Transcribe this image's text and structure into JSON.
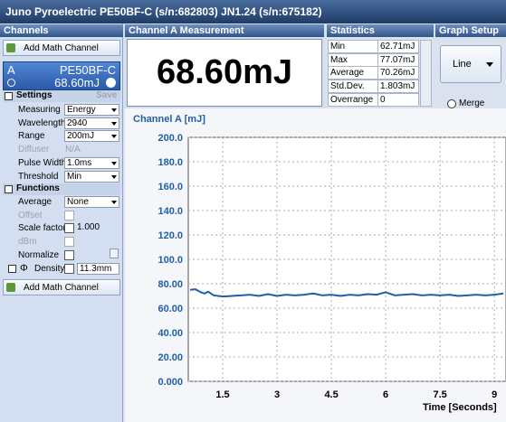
{
  "title_bar": "Juno Pyroelectric PE50BF-C (s/n:682803)  JN1.24 (s/n:675182)",
  "channels": {
    "header": "Channels",
    "add_math_top": "Add Math Channel",
    "channel": {
      "letter": "A",
      "sensor": "PE50BF-C",
      "reading": "68.60mJ"
    },
    "settings": {
      "header": "Settings",
      "save": "Save",
      "rows": [
        {
          "label": "Measuring",
          "value": "Energy"
        },
        {
          "label": "Wavelength",
          "value": "2940"
        },
        {
          "label": "Range",
          "value": "200mJ"
        },
        {
          "label": "Diffuser",
          "value": "N/A"
        },
        {
          "label": "Pulse Width",
          "value": "1.0ms"
        },
        {
          "label": "Threshold",
          "value": "Min"
        }
      ]
    },
    "functions": {
      "header": "Functions",
      "rows": [
        {
          "label": "Average",
          "value": "None"
        },
        {
          "label": "Offset"
        },
        {
          "label": "Scale factor",
          "value": "1.000"
        },
        {
          "label": "dBm"
        },
        {
          "label": "Normalize"
        },
        {
          "symbol": "Φ",
          "label": "Density",
          "value": "11.3mm"
        }
      ]
    },
    "add_math_bottom": "Add Math Channel"
  },
  "measurement": {
    "header": "Channel A Measurement",
    "value": "68.60mJ"
  },
  "statistics": {
    "header": "Statistics",
    "rows": [
      {
        "label": "Min",
        "value": "62.71mJ"
      },
      {
        "label": "Max",
        "value": "77.07mJ"
      },
      {
        "label": "Average",
        "value": "70.26mJ"
      },
      {
        "label": "Std.Dev.",
        "value": "1.803mJ"
      },
      {
        "label": "Overrange",
        "value": "0"
      }
    ]
  },
  "graph_setup": {
    "header": "Graph Setup",
    "mode": "Line",
    "merge": "Merge"
  },
  "chart_data": {
    "type": "line",
    "title": "Channel A [mJ]",
    "x_label": "Time [Seconds]",
    "x": [
      0.6,
      0.75,
      0.9,
      1.0,
      1.1,
      1.25,
      1.5,
      1.75,
      2.0,
      2.25,
      2.5,
      2.75,
      3.0,
      3.25,
      3.5,
      3.75,
      4.0,
      4.25,
      4.5,
      4.75,
      5.0,
      5.25,
      5.5,
      5.75,
      6.0,
      6.25,
      6.5,
      6.75,
      7.0,
      7.25,
      7.5,
      7.75,
      8.0,
      8.25,
      8.5,
      8.75,
      9.0,
      9.25
    ],
    "values": [
      75,
      75.5,
      73,
      72,
      73.5,
      70.5,
      69.5,
      70,
      70.5,
      71,
      70,
      71.5,
      70,
      71,
      70.5,
      71,
      72,
      70.5,
      71,
      70,
      71,
      70.5,
      71.5,
      71,
      73,
      70.5,
      71,
      71.5,
      70.5,
      71,
      70.5,
      71,
      70,
      70.5,
      71,
      70.5,
      71,
      72
    ],
    "color": "#1f5fa6",
    "xlim": [
      0.55,
      9.32
    ],
    "ylim": [
      0,
      200
    ],
    "xticks": [
      1.5,
      3,
      4.5,
      6,
      7.5,
      9
    ],
    "yticks": [
      {
        "value": 0,
        "label": "0.000"
      },
      {
        "value": 20,
        "label": "20.00"
      },
      {
        "value": 40,
        "label": "40.00"
      },
      {
        "value": 60,
        "label": "60.00"
      },
      {
        "value": 80,
        "label": "80.00"
      },
      {
        "value": 100,
        "label": "100.0"
      },
      {
        "value": 120,
        "label": "120.0"
      },
      {
        "value": 140,
        "label": "140.0"
      },
      {
        "value": 160,
        "label": "160.0"
      },
      {
        "value": 180,
        "label": "180.0"
      },
      {
        "value": 200,
        "label": "200.0"
      }
    ],
    "grid": true
  }
}
